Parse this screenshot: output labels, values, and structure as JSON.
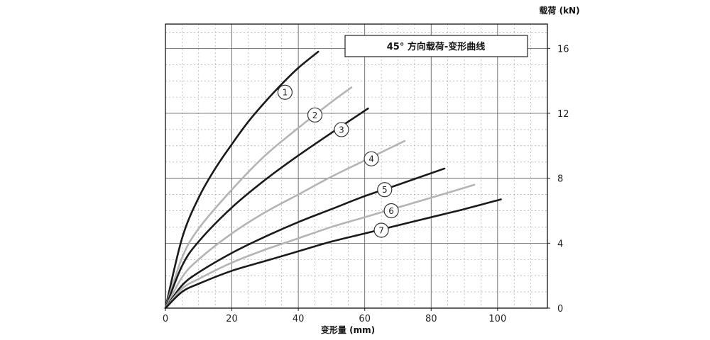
{
  "chart_data": {
    "type": "line",
    "title": "45° 方向载荷-变形曲线",
    "xlabel": "变形量 (mm)",
    "ylabel": "载荷 (kN)",
    "xlim": [
      0,
      115
    ],
    "ylim": [
      0,
      17.5
    ],
    "xticks": [
      0,
      20,
      40,
      60,
      80,
      100
    ],
    "yticks": [
      0,
      4,
      8,
      12,
      16
    ],
    "grid": true,
    "y_axis_position": "right",
    "series": [
      {
        "name": "1",
        "color": "#1a1a1a",
        "x": [
          0,
          5,
          10,
          15,
          20,
          25,
          30,
          35,
          40,
          46
        ],
        "y": [
          0,
          4.3,
          6.8,
          8.6,
          10.1,
          11.5,
          12.7,
          13.8,
          14.8,
          15.8
        ],
        "label_at": [
          36,
          13.3
        ]
      },
      {
        "name": "2",
        "color": "#b4b4b4",
        "x": [
          0,
          5,
          10,
          20,
          30,
          40,
          50,
          56
        ],
        "y": [
          0,
          3.1,
          4.9,
          7.3,
          9.4,
          11.1,
          12.7,
          13.6
        ],
        "label_at": [
          45,
          11.9
        ]
      },
      {
        "name": "3",
        "color": "#1a1a1a",
        "x": [
          0,
          5,
          10,
          20,
          30,
          40,
          50,
          61
        ],
        "y": [
          0,
          2.6,
          4.1,
          6.2,
          7.9,
          9.4,
          10.8,
          12.3
        ],
        "label_at": [
          53,
          11.0
        ]
      },
      {
        "name": "4",
        "color": "#b4b4b4",
        "x": [
          0,
          5,
          10,
          20,
          30,
          40,
          50,
          60,
          72
        ],
        "y": [
          0,
          1.9,
          3.0,
          4.6,
          5.9,
          7.0,
          8.1,
          9.1,
          10.3
        ],
        "label_at": [
          62,
          9.2
        ]
      },
      {
        "name": "5",
        "color": "#1a1a1a",
        "x": [
          0,
          5,
          10,
          20,
          30,
          40,
          50,
          60,
          70,
          84
        ],
        "y": [
          0,
          1.4,
          2.2,
          3.4,
          4.4,
          5.3,
          6.1,
          6.9,
          7.6,
          8.6
        ],
        "label_at": [
          66,
          7.3
        ]
      },
      {
        "name": "6",
        "color": "#b4b4b4",
        "x": [
          0,
          5,
          10,
          20,
          30,
          40,
          50,
          60,
          70,
          80,
          93
        ],
        "y": [
          0,
          1.2,
          1.8,
          2.8,
          3.6,
          4.3,
          5.0,
          5.6,
          6.2,
          6.8,
          7.6
        ],
        "label_at": [
          68,
          6.0
        ]
      },
      {
        "name": "7",
        "color": "#1a1a1a",
        "x": [
          0,
          5,
          10,
          20,
          30,
          40,
          50,
          60,
          70,
          80,
          90,
          101
        ],
        "y": [
          0,
          1.0,
          1.5,
          2.3,
          2.9,
          3.5,
          4.1,
          4.6,
          5.1,
          5.6,
          6.1,
          6.7
        ],
        "label_at": [
          65,
          4.8
        ]
      }
    ]
  }
}
